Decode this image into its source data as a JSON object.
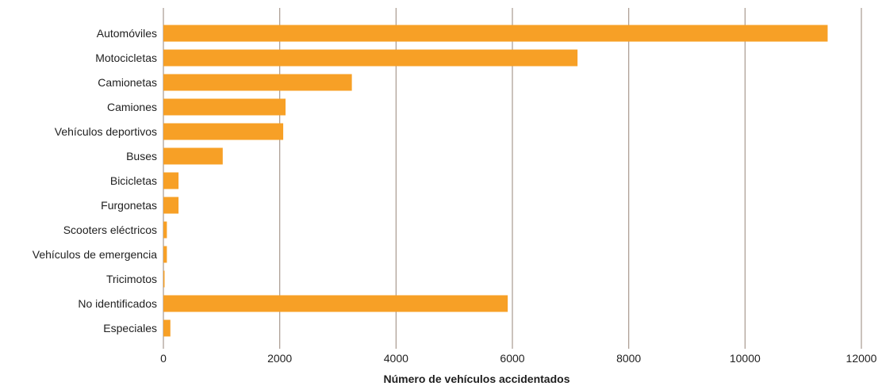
{
  "chart_data": {
    "type": "bar",
    "orientation": "horizontal",
    "title": "",
    "xlabel": "Número de vehículos accidentados",
    "ylabel": "",
    "xlim": [
      0,
      12000
    ],
    "xticks": [
      0,
      2000,
      4000,
      6000,
      8000,
      10000,
      12000
    ],
    "grid": true,
    "bar_color": "#F7A026",
    "grid_color": "#A8998F",
    "categories": [
      "Automóviles",
      "Motocicletas",
      "Camionetas",
      "Camiones",
      "Vehículos deportivos",
      "Buses",
      "Bicicletas",
      "Furgonetas",
      "Scooters eléctricos",
      "Vehículos de emergencia",
      "Tricimotos",
      "No identificados",
      "Especiales"
    ],
    "values": [
      11420,
      7120,
      3240,
      2100,
      2060,
      1020,
      260,
      260,
      60,
      60,
      20,
      5920,
      120
    ]
  }
}
